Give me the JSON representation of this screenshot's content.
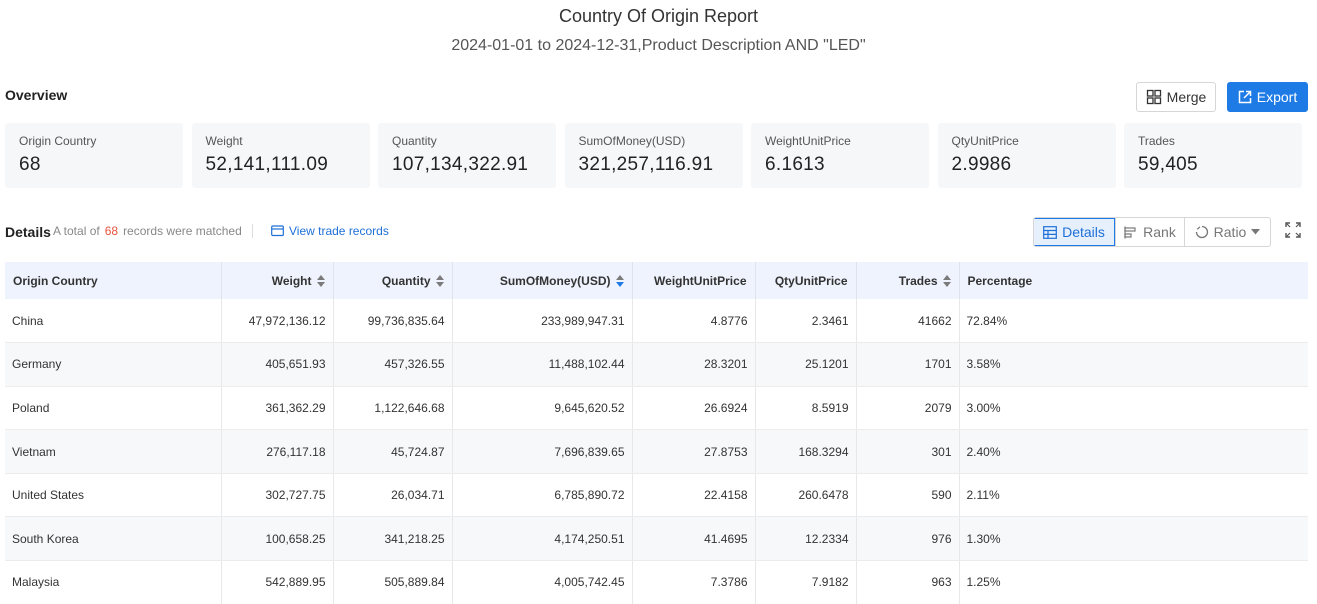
{
  "report": {
    "title": "Country Of Origin Report",
    "subtitle": "2024-01-01 to 2024-12-31,Product Description AND \"LED\""
  },
  "overview": {
    "label": "Overview",
    "merge_label": "Merge",
    "export_label": "Export",
    "stats": [
      {
        "label": "Origin Country",
        "value": "68"
      },
      {
        "label": "Weight",
        "value": "52,141,111.09"
      },
      {
        "label": "Quantity",
        "value": "107,134,322.91"
      },
      {
        "label": "SumOfMoney(USD)",
        "value": "321,257,116.91"
      },
      {
        "label": "WeightUnitPrice",
        "value": "6.1613"
      },
      {
        "label": "QtyUnitPrice",
        "value": "2.9986"
      },
      {
        "label": "Trades",
        "value": "59,405"
      }
    ]
  },
  "details": {
    "label": "Details",
    "records_prefix": "A total of",
    "records_count": "68",
    "records_suffix": "records were matched",
    "view_link": "View trade records",
    "views": {
      "details": "Details",
      "rank": "Rank",
      "ratio": "Ratio"
    }
  },
  "table": {
    "columns": [
      "Origin Country",
      "Weight",
      "Quantity",
      "SumOfMoney(USD)",
      "WeightUnitPrice",
      "QtyUnitPrice",
      "Trades",
      "Percentage"
    ],
    "rows": [
      [
        "China",
        "47,972,136.12",
        "99,736,835.64",
        "233,989,947.31",
        "4.8776",
        "2.3461",
        "41662",
        "72.84%"
      ],
      [
        "Germany",
        "405,651.93",
        "457,326.55",
        "11,488,102.44",
        "28.3201",
        "25.1201",
        "1701",
        "3.58%"
      ],
      [
        "Poland",
        "361,362.29",
        "1,122,646.68",
        "9,645,620.52",
        "26.6924",
        "8.5919",
        "2079",
        "3.00%"
      ],
      [
        "Vietnam",
        "276,117.18",
        "45,724.87",
        "7,696,839.65",
        "27.8753",
        "168.3294",
        "301",
        "2.40%"
      ],
      [
        "United States",
        "302,727.75",
        "26,034.71",
        "6,785,890.72",
        "22.4158",
        "260.6478",
        "590",
        "2.11%"
      ],
      [
        "South Korea",
        "100,658.25",
        "341,218.25",
        "4,174,250.51",
        "41.4695",
        "12.2334",
        "976",
        "1.30%"
      ],
      [
        "Malaysia",
        "542,889.95",
        "505,889.84",
        "4,005,742.45",
        "7.3786",
        "7.9182",
        "963",
        "1.25%"
      ]
    ]
  },
  "colors": {
    "accent": "#1e7be6",
    "count": "#e8513e",
    "header_bg": "#eef3fd"
  },
  "icons": {
    "merge": "merge-icon",
    "export": "export-icon",
    "view": "trade-records-icon",
    "details": "table-icon",
    "rank": "rank-icon",
    "ratio": "ratio-icon",
    "expand": "expand-icon"
  }
}
